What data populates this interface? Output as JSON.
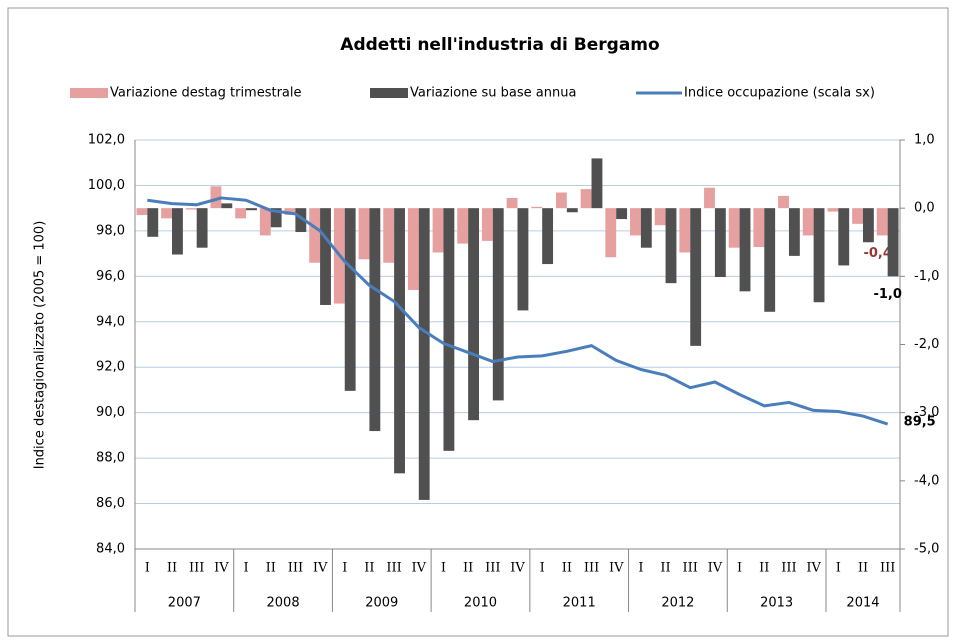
{
  "chart_data": {
    "type": "bar_line",
    "title": "Addetti nell'industria di Bergamo",
    "y_label": "Indice destagionalizzato (2005 = 100)",
    "categories": [
      "I",
      "II",
      "III",
      "IV",
      "I",
      "II",
      "III",
      "IV",
      "I",
      "II",
      "III",
      "IV",
      "I",
      "II",
      "III",
      "IV",
      "I",
      "II",
      "III",
      "IV",
      "I",
      "II",
      "III",
      "IV",
      "I",
      "II",
      "III",
      "IV",
      "I",
      "II",
      "III"
    ],
    "groups": [
      "2007",
      "2008",
      "2009",
      "2010",
      "2011",
      "2012",
      "2013",
      "2014"
    ],
    "ylim": [
      84,
      102
    ],
    "yticks": [
      {
        "value": 84,
        "label": "84,0"
      },
      {
        "value": 86,
        "label": "86,0"
      },
      {
        "value": 88,
        "label": "88,0"
      },
      {
        "value": 90,
        "label": "90,0"
      },
      {
        "value": 92,
        "label": "92,0"
      },
      {
        "value": 94,
        "label": "94,0"
      },
      {
        "value": 96,
        "label": "96,0"
      },
      {
        "value": 98,
        "label": "98,0"
      },
      {
        "value": 100,
        "label": "100,0"
      },
      {
        "value": 102,
        "label": "102,0"
      }
    ],
    "y2lim": [
      -5,
      1
    ],
    "y2ticks": [
      {
        "value": -5,
        "label": "-5,0"
      },
      {
        "value": -4,
        "label": "-4,0"
      },
      {
        "value": -3,
        "label": "-3,0"
      },
      {
        "value": -2,
        "label": "-2,0"
      },
      {
        "value": -1,
        "label": "-1,0"
      },
      {
        "value": 0,
        "label": "0,0"
      },
      {
        "value": 1,
        "label": "1,0"
      }
    ],
    "grid": true,
    "series": [
      {
        "name": "Variazione destag trimestrale",
        "type": "bar",
        "axis": "y2",
        "color": "#e6a0a0",
        "label_color": "#953735",
        "values": [
          -0.1,
          -0.15,
          -0.02,
          0.32,
          -0.15,
          -0.4,
          -0.1,
          -0.8,
          -1.4,
          -0.75,
          -0.8,
          -1.2,
          -0.65,
          -0.52,
          -0.48,
          0.15,
          0.02,
          0.23,
          0.28,
          -0.72,
          -0.4,
          -0.25,
          -0.65,
          0.3,
          -0.58,
          -0.57,
          0.18,
          -0.4,
          -0.05,
          -0.23,
          -0.4
        ],
        "value_labels": [
          null,
          null,
          null,
          null,
          null,
          null,
          null,
          null,
          null,
          null,
          null,
          null,
          null,
          null,
          null,
          null,
          null,
          null,
          null,
          null,
          null,
          null,
          null,
          null,
          null,
          null,
          null,
          null,
          null,
          null,
          "-0,4"
        ]
      },
      {
        "name": "Variazione su base annua",
        "type": "bar",
        "axis": "y2",
        "color": "#505050",
        "label_color": "#000000",
        "values": [
          -0.42,
          -0.68,
          -0.58,
          0.07,
          -0.03,
          -0.28,
          -0.35,
          -1.42,
          -2.68,
          -3.27,
          -3.89,
          -4.28,
          -3.56,
          -3.11,
          -2.82,
          -1.5,
          -0.82,
          -0.06,
          0.73,
          -0.16,
          -0.58,
          -1.1,
          -2.02,
          -1.01,
          -1.22,
          -1.52,
          -0.7,
          -1.38,
          -0.84,
          -0.5,
          -1.0
        ],
        "value_labels": [
          null,
          null,
          null,
          null,
          null,
          null,
          null,
          null,
          null,
          null,
          null,
          null,
          null,
          null,
          null,
          null,
          null,
          null,
          null,
          null,
          null,
          null,
          null,
          null,
          null,
          null,
          null,
          null,
          null,
          null,
          "-1,0"
        ]
      },
      {
        "name": "Indice occupazione (scala sx)",
        "type": "line",
        "axis": "y",
        "color": "#4a7ebb",
        "label_color": "#000000",
        "values": [
          99.35,
          99.2,
          99.15,
          99.45,
          99.35,
          98.9,
          98.75,
          98.0,
          96.65,
          95.6,
          94.9,
          93.75,
          93.05,
          92.65,
          92.25,
          92.45,
          92.5,
          92.7,
          92.95,
          92.3,
          91.9,
          91.65,
          91.1,
          91.35,
          90.8,
          90.3,
          90.45,
          90.1,
          90.05,
          89.85,
          89.5
        ],
        "value_labels": [
          null,
          null,
          null,
          null,
          null,
          null,
          null,
          null,
          null,
          null,
          null,
          null,
          null,
          null,
          null,
          null,
          null,
          null,
          null,
          null,
          null,
          null,
          null,
          null,
          null,
          null,
          null,
          null,
          null,
          null,
          "89,5"
        ]
      }
    ]
  }
}
